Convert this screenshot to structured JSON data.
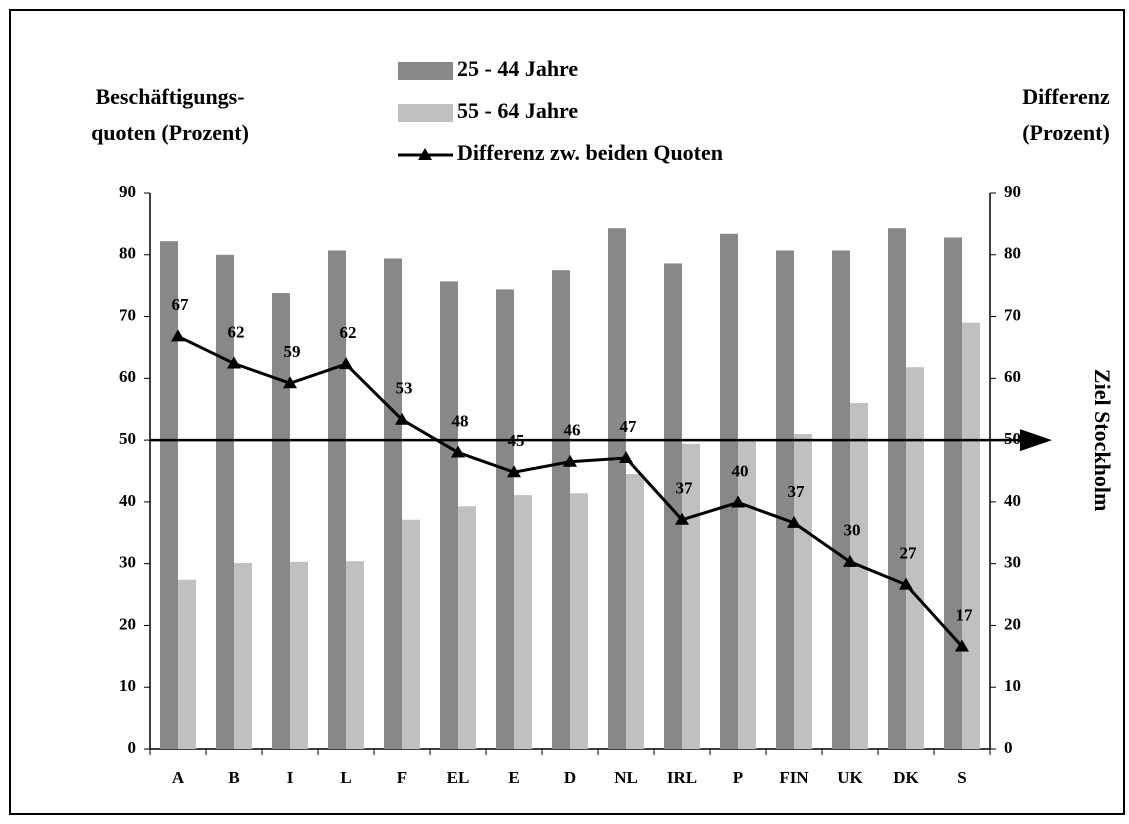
{
  "chart_data": {
    "type": "bar",
    "y_label": [
      "Beschäftigungs-",
      "quoten (Prozent)"
    ],
    "y2_label": [
      "Differenz",
      "(Prozent)"
    ],
    "categories": [
      "A",
      "B",
      "I",
      "L",
      "F",
      "EL",
      "E",
      "D",
      "NL",
      "IRL",
      "P",
      "FIN",
      "UK",
      "DK",
      "S"
    ],
    "series": [
      {
        "name": "25 - 44 Jahre",
        "type": "bar",
        "color": "#888888",
        "values": [
          82.2,
          80,
          73.8,
          80.7,
          79.4,
          75.7,
          74.4,
          77.5,
          84.3,
          78.6,
          83.4,
          80.7,
          80.7,
          84.3,
          82.8
        ]
      },
      {
        "name": "55 - 64 Jahre",
        "type": "bar",
        "color": "#c0c0c0",
        "values": [
          27.4,
          30.1,
          30.3,
          30.4,
          37.1,
          39.3,
          41.1,
          41.4,
          44.5,
          49.4,
          50,
          51,
          56,
          61.8,
          69
        ]
      },
      {
        "name": "Differenz zw. beiden Quoten",
        "type": "line",
        "axis": "y2",
        "color": "#000000",
        "values": [
          66.8,
          62.4,
          59.2,
          62.3,
          53.3,
          48,
          44.8,
          46.5,
          47.1,
          37.1,
          39.9,
          36.6,
          30.3,
          26.6,
          16.6
        ],
        "value_labels": [
          "67",
          "62",
          "59",
          "62",
          "53",
          "48",
          "45",
          "46",
          "47",
          "37",
          "40",
          "37",
          "30",
          "27",
          "17"
        ]
      }
    ],
    "target": {
      "label": "Ziel Stockholm",
      "value": 50
    },
    "ylim": [
      0,
      90
    ],
    "yticks": [
      0,
      10,
      20,
      30,
      40,
      50,
      60,
      70,
      80,
      90
    ],
    "y2lim": [
      0,
      90
    ],
    "y2ticks": [
      0,
      10,
      20,
      30,
      40,
      50,
      60,
      70,
      80,
      90
    ],
    "grid": false
  }
}
